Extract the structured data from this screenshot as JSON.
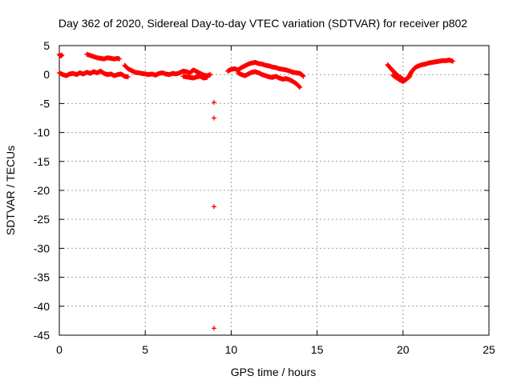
{
  "chart_data": {
    "type": "scatter",
    "title": "Day 362 of 2020, Sidereal Day-to-day VTEC variation (SDTVAR) for receiver p802",
    "xlabel": "GPS time / hours",
    "ylabel": "SDTVAR / TECUs",
    "xlim": [
      0,
      25
    ],
    "ylim": [
      -45,
      5
    ],
    "xticks": [
      0,
      5,
      10,
      15,
      20,
      25
    ],
    "yticks": [
      5,
      0,
      -5,
      -10,
      -15,
      -20,
      -25,
      -30,
      -35,
      -40,
      -45
    ],
    "xtick_labels": [
      "0",
      "5",
      "10",
      "15",
      "20",
      "25"
    ],
    "ytick_labels": [
      "5",
      "0",
      "-5",
      "-10",
      "-15",
      "-20",
      "-25",
      "-30",
      "-35",
      "-40",
      "-45"
    ],
    "grid": true,
    "marker": "+",
    "color": "#ff0000",
    "series": [
      {
        "name": "SDTVAR",
        "segments": [
          {
            "x": [
              0.0,
              0.05,
              0.1,
              0.15
            ],
            "y": [
              3.5,
              3.3,
              3.2,
              3.4
            ]
          },
          {
            "x": [
              0.0,
              0.2,
              0.4,
              0.6,
              0.8,
              1.0,
              1.2,
              1.4,
              1.6,
              1.8,
              2.0,
              2.2,
              2.4,
              2.6,
              2.8,
              3.0,
              3.2,
              3.4,
              3.6,
              3.8,
              4.0
            ],
            "y": [
              0.3,
              0.0,
              -0.2,
              0.1,
              0.2,
              0.0,
              0.3,
              0.1,
              0.4,
              0.2,
              0.5,
              0.3,
              0.6,
              0.2,
              0.0,
              0.1,
              -0.2,
              0.0,
              0.1,
              -0.3,
              -0.4
            ]
          },
          {
            "x": [
              1.6,
              1.8,
              2.0,
              2.2,
              2.4,
              2.6,
              2.8,
              3.0,
              3.2,
              3.4,
              3.5
            ],
            "y": [
              3.5,
              3.3,
              3.1,
              2.9,
              2.8,
              2.7,
              2.9,
              2.8,
              2.7,
              2.8,
              2.7
            ]
          },
          {
            "x": [
              3.8,
              4.0,
              4.2,
              4.4,
              4.6,
              4.8,
              5.0,
              5.2,
              5.4,
              5.6,
              5.8,
              6.0,
              6.2,
              6.4,
              6.6,
              6.8,
              7.0,
              7.2,
              7.4,
              7.6,
              7.8,
              8.0,
              8.2,
              8.4,
              8.6,
              8.8
            ],
            "y": [
              1.6,
              1.0,
              0.7,
              0.4,
              0.3,
              0.2,
              0.1,
              0.0,
              0.1,
              -0.1,
              0.2,
              0.3,
              0.1,
              0.0,
              0.2,
              0.1,
              0.3,
              0.6,
              0.5,
              0.3,
              0.8,
              0.5,
              0.2,
              -0.1,
              -0.2,
              0.0
            ]
          },
          {
            "x": [
              7.2,
              7.4,
              7.6,
              7.8,
              8.0,
              8.2,
              8.4,
              8.6
            ],
            "y": [
              -0.3,
              -0.4,
              -0.5,
              -0.6,
              -0.4,
              -0.3,
              -0.6,
              -0.5
            ]
          },
          {
            "x": [
              9.0,
              9.0,
              9.0,
              9.0
            ],
            "y": [
              -4.8,
              -7.5,
              -22.8,
              -43.8
            ]
          },
          {
            "x": [
              9.8,
              10.0,
              10.2,
              10.4,
              10.6,
              10.8,
              11.0,
              11.2,
              11.4,
              11.6,
              11.8,
              12.0,
              12.2,
              12.4,
              12.6,
              12.8,
              13.0,
              13.2,
              13.4,
              13.6,
              13.8,
              14.0,
              14.1,
              14.2
            ],
            "y": [
              0.6,
              0.9,
              1.0,
              0.8,
              1.2,
              1.5,
              1.8,
              2.0,
              2.1,
              1.9,
              1.8,
              1.6,
              1.5,
              1.3,
              1.2,
              1.0,
              0.9,
              0.8,
              0.6,
              0.4,
              0.3,
              0.2,
              0.0,
              -0.3
            ]
          },
          {
            "x": [
              10.4,
              10.6,
              10.8,
              11.0,
              11.2,
              11.4,
              11.6,
              11.8,
              12.0,
              12.2,
              12.4,
              12.6,
              12.8,
              13.0,
              13.2,
              13.4,
              13.6,
              13.8,
              14.0
            ],
            "y": [
              0.3,
              0.0,
              -0.2,
              0.1,
              0.4,
              0.5,
              0.3,
              0.0,
              -0.2,
              -0.4,
              -0.5,
              -0.3,
              -0.6,
              -0.8,
              -0.7,
              -0.9,
              -1.2,
              -1.6,
              -2.2
            ]
          },
          {
            "x": [
              19.1,
              19.3,
              19.5,
              19.7,
              19.9,
              20.1,
              20.3,
              20.5,
              20.7,
              20.9,
              21.1,
              21.3,
              21.5,
              21.7,
              21.9,
              22.1,
              22.3,
              22.5,
              22.7,
              22.9
            ],
            "y": [
              1.7,
              1.0,
              0.4,
              -0.2,
              -0.6,
              -1.0,
              -0.5,
              0.5,
              1.2,
              1.5,
              1.7,
              1.8,
              2.0,
              2.1,
              2.2,
              2.3,
              2.4,
              2.4,
              2.5,
              2.3
            ]
          },
          {
            "x": [
              19.4,
              19.6,
              19.8,
              20.0,
              20.2,
              20.4
            ],
            "y": [
              -0.1,
              -0.5,
              -0.9,
              -1.2,
              -0.8,
              -0.3
            ]
          }
        ]
      }
    ]
  }
}
